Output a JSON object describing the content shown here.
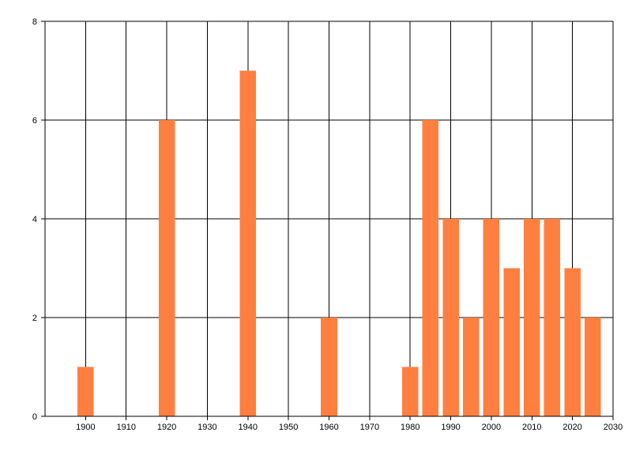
{
  "chart_data": {
    "type": "bar",
    "title": "",
    "xlabel": "",
    "ylabel": "",
    "x": [
      1900,
      1920,
      1940,
      1960,
      1980,
      1985,
      1990,
      1995,
      2000,
      2005,
      2010,
      2015,
      2020,
      2025
    ],
    "values": [
      1,
      6,
      7,
      2,
      1,
      6,
      4,
      2,
      4,
      3,
      4,
      4,
      3,
      2
    ],
    "xlim": [
      1890,
      2030
    ],
    "ylim": [
      0,
      8
    ],
    "x_ticks": [
      1900,
      1910,
      1920,
      1930,
      1940,
      1950,
      1960,
      1970,
      1980,
      1990,
      2000,
      2010,
      2020,
      2030
    ],
    "y_ticks": [
      0,
      2,
      4,
      6,
      8
    ],
    "bar_width_years": 4,
    "grid": true,
    "legend": "none",
    "colors": {
      "bar": "#FF7F40",
      "grid": "#000000",
      "axis": "#000000",
      "background": "#FFFFFF"
    }
  }
}
